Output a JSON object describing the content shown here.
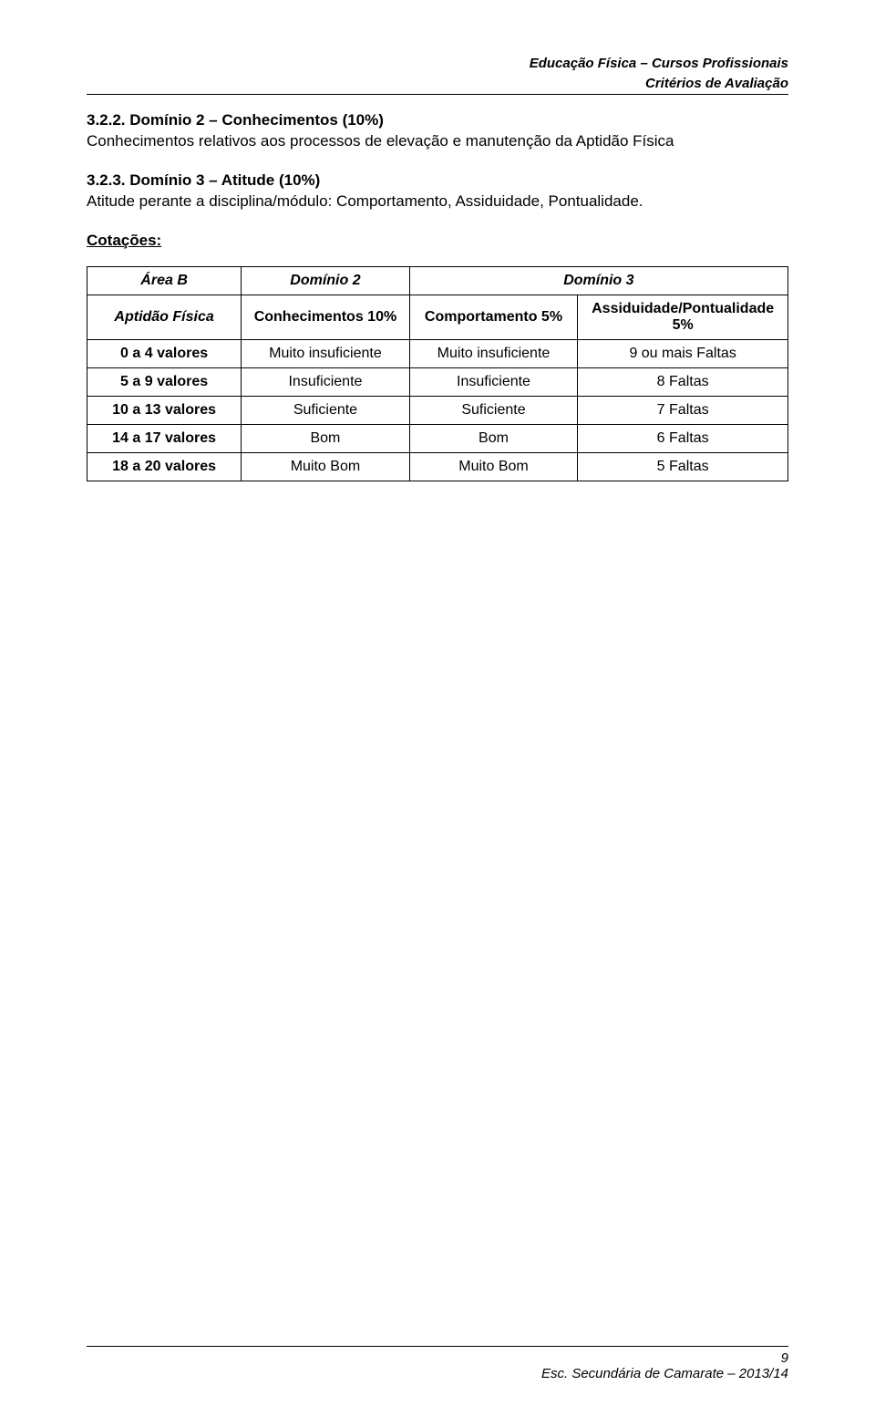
{
  "header": {
    "line1": "Educação Física – Cursos Profissionais",
    "line2": "Critérios de Avaliação"
  },
  "section322": {
    "title": "3.2.2. Domínio 2 – Conhecimentos (10%)",
    "text": "Conhecimentos relativos aos processos de elevação e manutenção da Aptidão Física"
  },
  "section323": {
    "title": "3.2.3. Domínio 3 – Atitude (10%)",
    "text": "Atitude perante a disciplina/módulo: Comportamento, Assiduidade, Pontualidade."
  },
  "cotacoes_label": "Cotações:",
  "table": {
    "head": {
      "c0": "Área B",
      "c1": "Domínio 2",
      "c23": "Domínio 3"
    },
    "subhead": {
      "c0": "Aptidão Física",
      "c1": "Conhecimentos 10%",
      "c2": "Comportamento 5%",
      "c3": "Assiduidade/Pontualidade 5%"
    },
    "rows": [
      {
        "label": "0 a 4 valores",
        "c1": "Muito insuficiente",
        "c2": "Muito insuficiente",
        "c3": "9 ou mais Faltas"
      },
      {
        "label": "5 a 9 valores",
        "c1": "Insuficiente",
        "c2": "Insuficiente",
        "c3": "8 Faltas"
      },
      {
        "label": "10 a 13 valores",
        "c1": "Suficiente",
        "c2": "Suficiente",
        "c3": "7 Faltas"
      },
      {
        "label": "14 a 17 valores",
        "c1": "Bom",
        "c2": "Bom",
        "c3": "6 Faltas"
      },
      {
        "label": "18 a 20 valores",
        "c1": "Muito Bom",
        "c2": "Muito Bom",
        "c3": "5 Faltas"
      }
    ]
  },
  "footer": {
    "page": "9",
    "text": "Esc. Secundária de Camarate – 2013/14"
  }
}
